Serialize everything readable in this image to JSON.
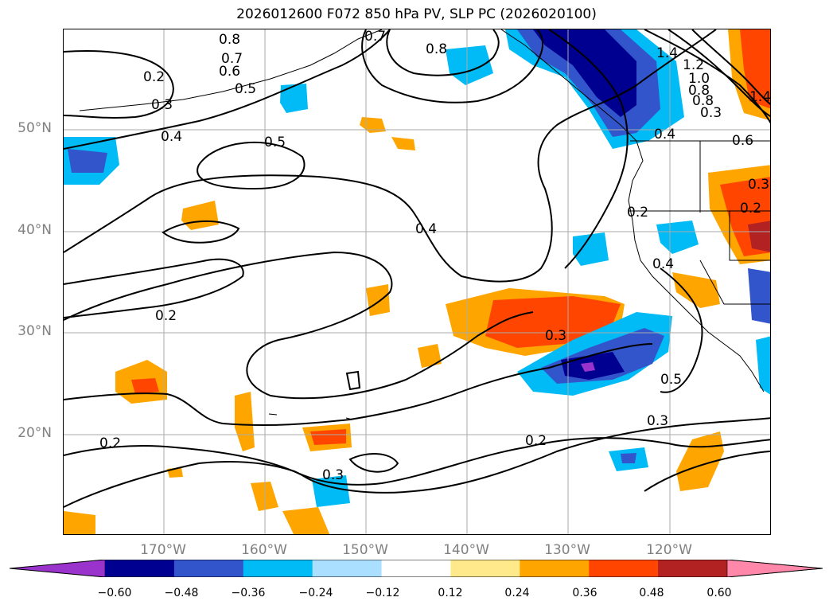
{
  "title": "2026012600 F072 850 hPa PV, SLP PC (2026020100)",
  "latitude_labels": [
    "50°N",
    "40°N",
    "30°N",
    "20°N"
  ],
  "longitude_labels": [
    "170°W",
    "160°W",
    "150°W",
    "140°W",
    "130°W",
    "120°W"
  ],
  "colorbar": {
    "colors": [
      "#9933cc",
      "#000090",
      "#3355cc",
      "#00bbf5",
      "#aadfff",
      "#ffffff",
      "#ffe98a",
      "#ffa500",
      "#ff4500",
      "#b22222",
      "#ff88aa"
    ],
    "tick_labels": [
      "−0.60",
      "−0.48",
      "−0.36",
      "−0.24",
      "−0.12",
      "0.12",
      "0.24",
      "0.36",
      "0.48",
      "0.60"
    ]
  },
  "contour_labels": [
    "0.8",
    "0.7",
    "0.6",
    "0.5",
    "0.2",
    "0.3",
    "0.4",
    "0.5",
    "0.4",
    "0.2",
    "0.3",
    "0.2",
    "0.3",
    "0.2",
    "0.3",
    "0.5",
    "0.3",
    "0.2",
    "0.4",
    "0.2",
    "0.4",
    "0.6",
    "0.8",
    "1.4",
    "1.2",
    "1.0",
    "0.8",
    "1.4",
    "0.3",
    "0.7",
    "0.8"
  ]
}
